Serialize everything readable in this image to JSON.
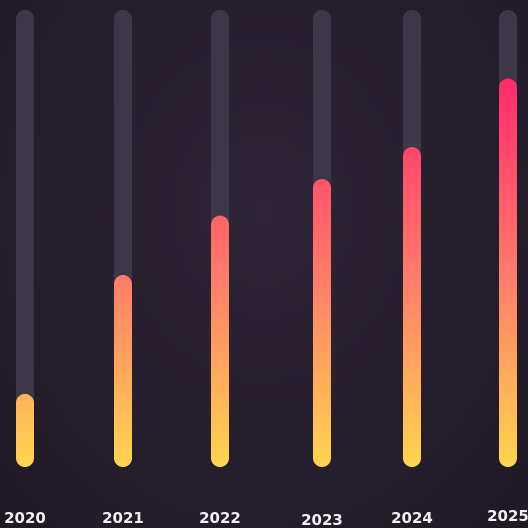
{
  "chart_data": {
    "type": "bar",
    "categories": [
      "2020",
      "2021",
      "2022",
      "2023",
      "2024",
      "2025"
    ],
    "values": [
      16,
      42,
      55,
      63,
      70,
      85
    ],
    "ylim": [
      0,
      100
    ],
    "grid": false,
    "legend": "none",
    "colors": {
      "track": "#3e3748",
      "gradient_top": "#ff2a6e",
      "gradient_mid": "#ff7a6a",
      "gradient_bottom": "#ffd54f",
      "label": "#f2eef4"
    }
  }
}
